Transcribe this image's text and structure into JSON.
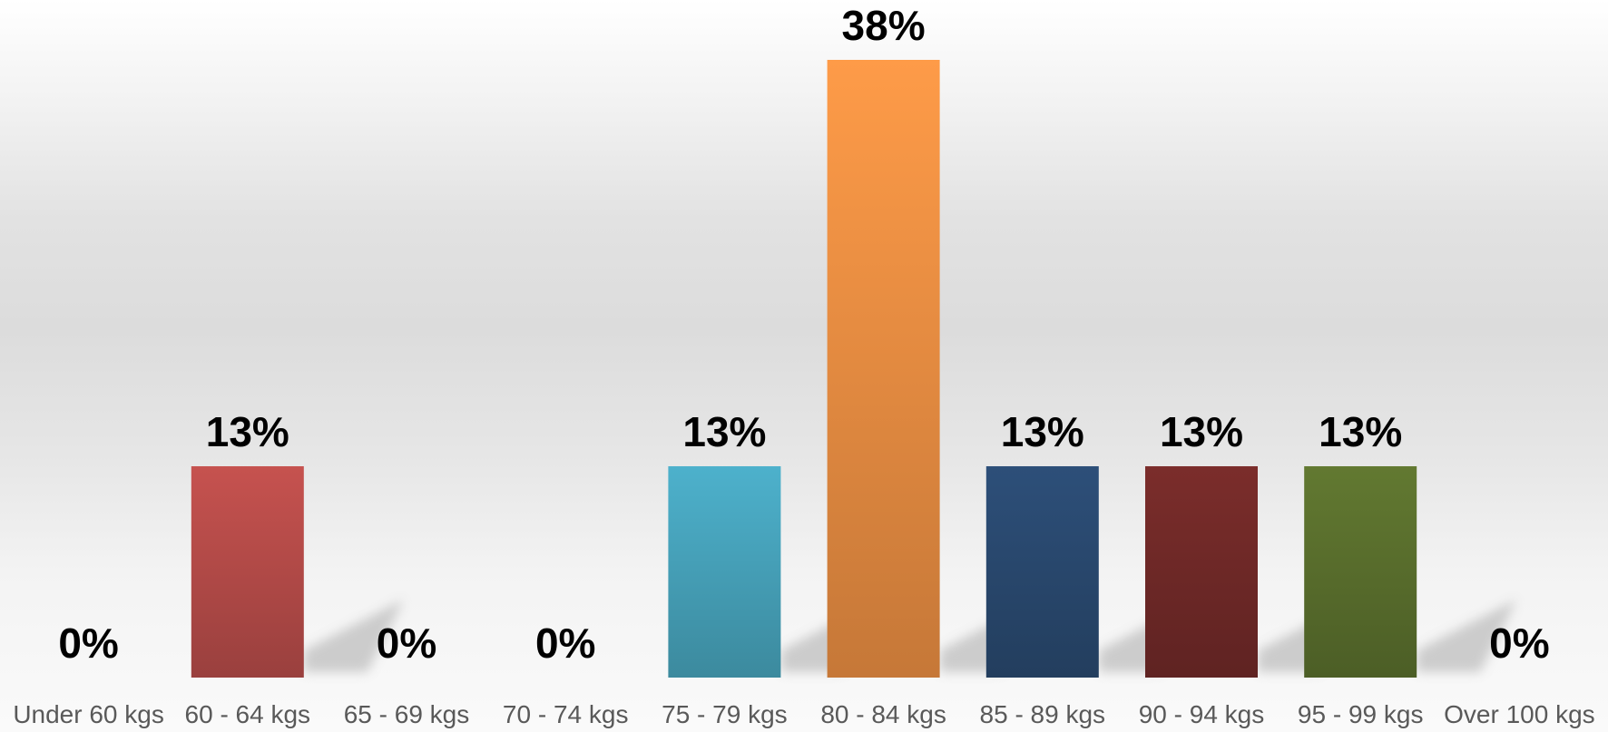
{
  "chart_data": {
    "type": "bar",
    "categories": [
      "Under 60 kgs",
      "60 - 64 kgs",
      "65 - 69 kgs",
      "70 - 74 kgs",
      "75 - 79 kgs",
      "80 - 84 kgs",
      "85 - 89 kgs",
      "90 - 94 kgs",
      "95 - 99 kgs",
      "Over 100 kgs"
    ],
    "values": [
      0,
      13,
      0,
      0,
      13,
      38,
      13,
      13,
      13,
      0
    ],
    "data_labels": [
      "0%",
      "13%",
      "0%",
      "0%",
      "13%",
      "38%",
      "13%",
      "13%",
      "13%",
      "0%"
    ],
    "colors": [
      "#c0504d",
      "#c0504d",
      "#c0504d",
      "#c0504d",
      "#4bacc6",
      "#f79646",
      "#2c4d75",
      "#772c2a",
      "#5f7530",
      "#9bbb59"
    ],
    "ylim": [
      0,
      38
    ],
    "grid": false,
    "legend": "none"
  }
}
